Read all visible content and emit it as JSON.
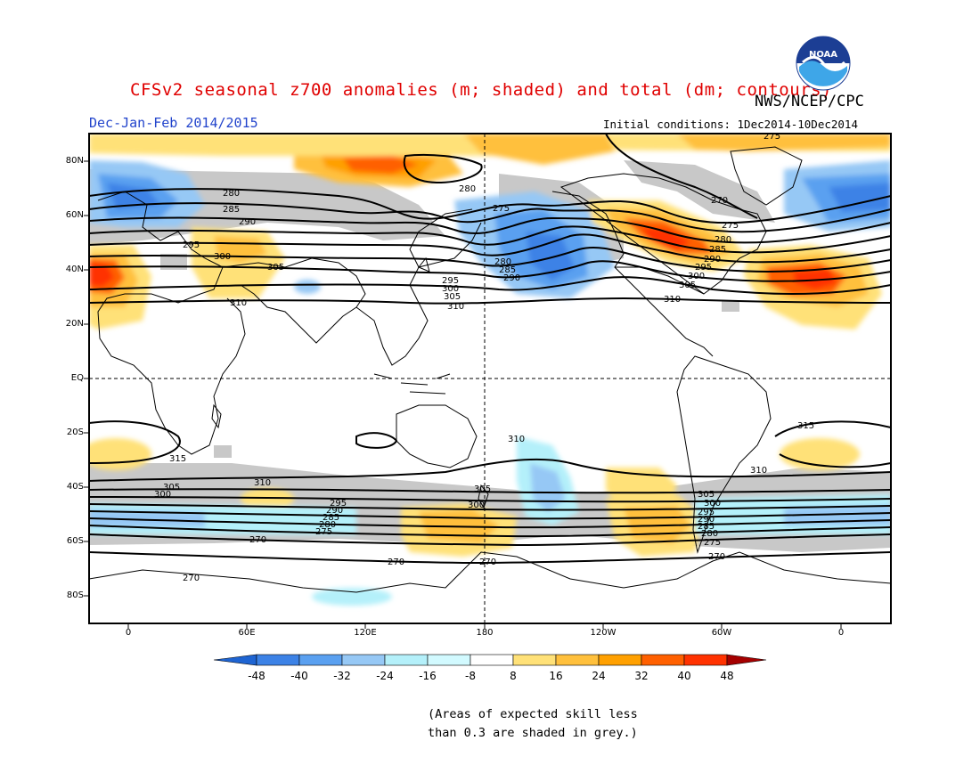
{
  "title": "CFSv2 seasonal z700 anomalies (m; shaded) and total (dm; contours)",
  "agency": "NWS/NCEP/CPC",
  "logo_text": "NOAA",
  "season": "Dec-Jan-Feb 2014/2015",
  "initial_conditions": "Initial conditions: 1Dec2014-10Dec2014",
  "map": {
    "lat_labels": [
      "80N",
      "60N",
      "40N",
      "20N",
      "EQ",
      "20S",
      "40S",
      "60S",
      "80S"
    ],
    "lon_labels": [
      "0",
      "60E",
      "120E",
      "180",
      "120W",
      "60W",
      "0"
    ],
    "contour_labels": [
      "275",
      "280",
      "285",
      "290",
      "295",
      "300",
      "305",
      "310",
      "315",
      "270"
    ]
  },
  "colorbar": {
    "labels": [
      "-48",
      "-40",
      "-32",
      "-24",
      "-16",
      "-8",
      "8",
      "16",
      "24",
      "32",
      "40",
      "48"
    ],
    "colors": [
      "#1e64d2",
      "#3c82e6",
      "#5aa0f0",
      "#96c8f5",
      "#b4f0fa",
      "#ffffff",
      "#ffe178",
      "#ffc03c",
      "#ffa000",
      "#ff6000",
      "#ff3200",
      "#e11400",
      "#a50000"
    ]
  },
  "note_line1": "(Areas of expected skill less",
  "note_line2": "than 0.3 are shaded in grey.)"
}
